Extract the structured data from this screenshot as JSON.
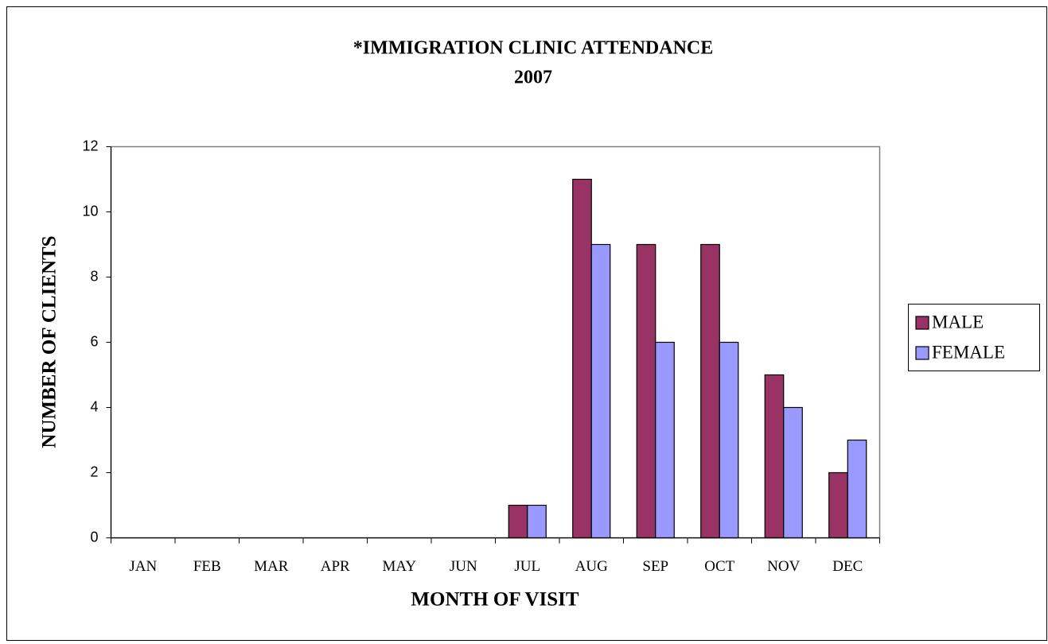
{
  "chart_data": {
    "type": "bar",
    "title": [
      "*IMMIGRATION CLINIC ATTENDANCE",
      "2007"
    ],
    "x_label": "MONTH OF VISIT",
    "y_label": "NUMBER OF CLIENTS",
    "categories": [
      "JAN",
      "FEB",
      "MAR",
      "APR",
      "MAY",
      "JUN",
      "JUL",
      "AUG",
      "SEP",
      "OCT",
      "NOV",
      "DEC"
    ],
    "series": [
      {
        "name": "MALE",
        "color": "#993366",
        "values": [
          0,
          0,
          0,
          0,
          0,
          0,
          1,
          11,
          9,
          9,
          5,
          2
        ]
      },
      {
        "name": "FEMALE",
        "color": "#9999ff",
        "values": [
          0,
          0,
          0,
          0,
          0,
          0,
          1,
          9,
          6,
          6,
          4,
          3
        ]
      }
    ],
    "ylim": [
      0,
      12
    ],
    "yticks": [
      0,
      2,
      4,
      6,
      8,
      10,
      12
    ],
    "grid": false,
    "legend": "right"
  }
}
